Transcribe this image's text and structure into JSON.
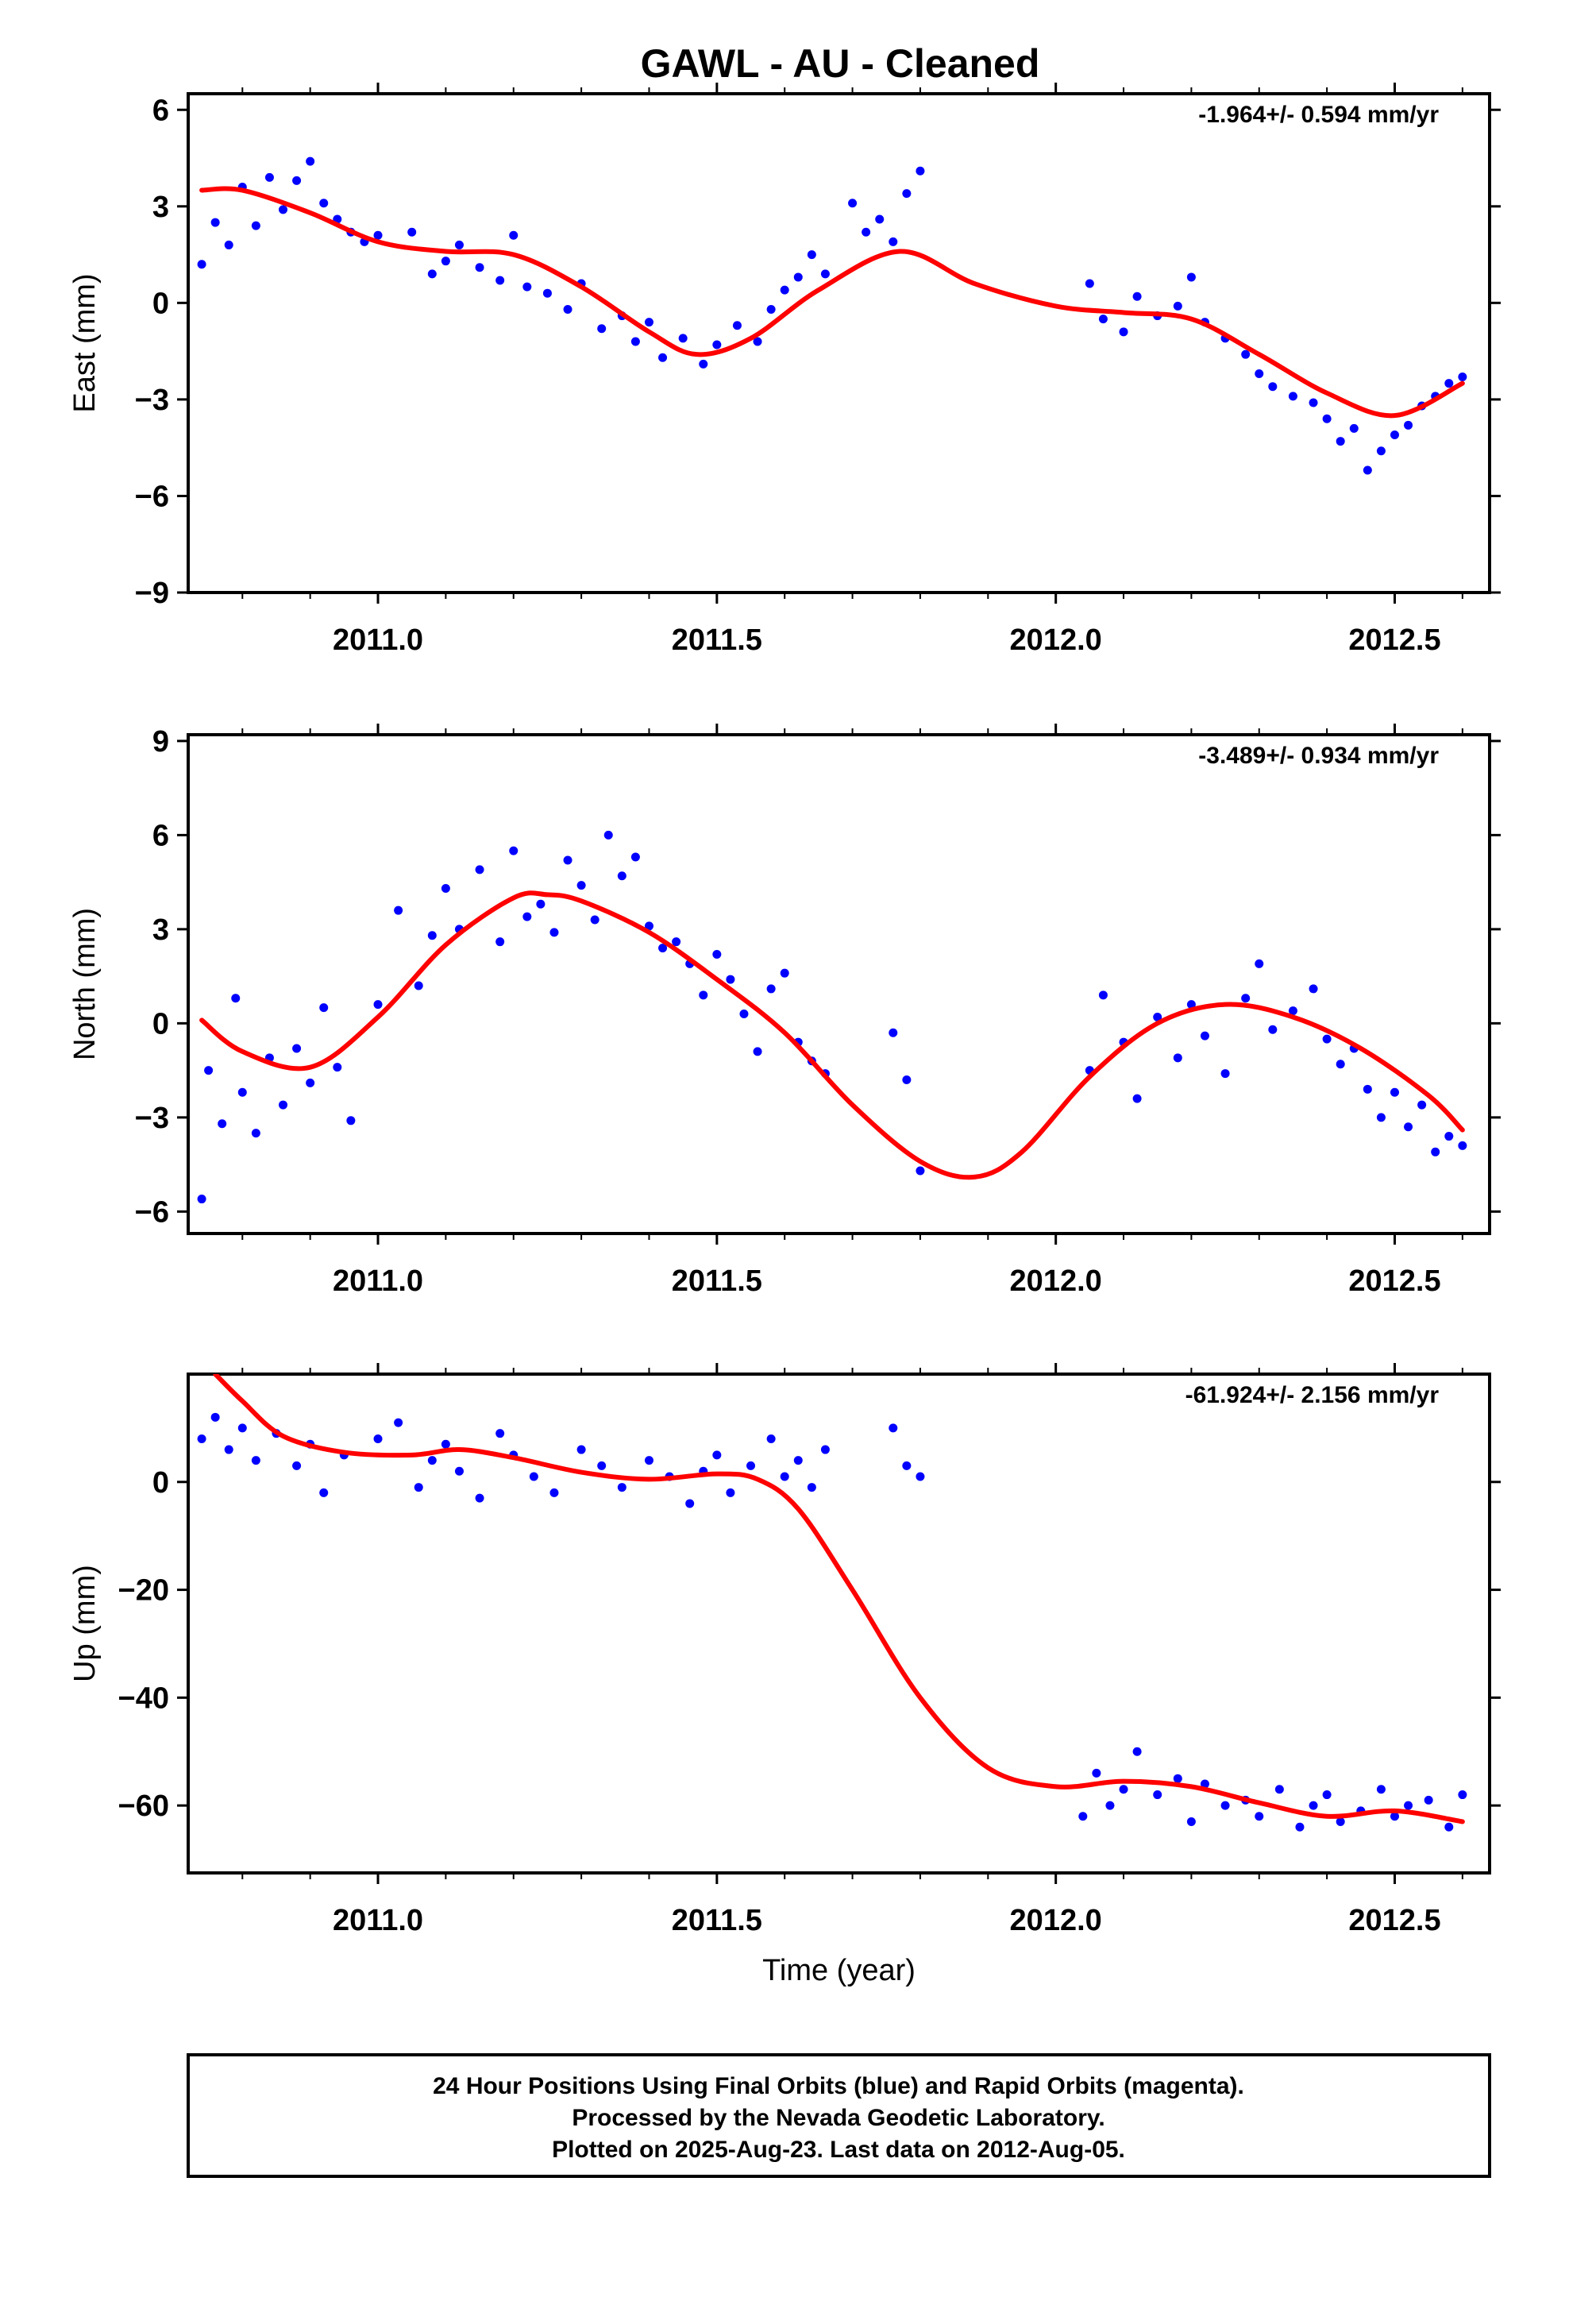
{
  "title": "GAWL  - AU - Cleaned",
  "colors": {
    "final_orbits": "#0000ff",
    "rapid_orbits": "#ff00ff",
    "model": "#ff0000",
    "frame": "#000000"
  },
  "chart_data": [
    {
      "type": "scatter",
      "ylabel": "East (mm)",
      "rate_label": "-1.964+/- 0.594 mm/yr",
      "xlim": [
        2010.72,
        2012.64
      ],
      "ylim": [
        -9,
        6.5
      ],
      "yticks": [
        6,
        3,
        0,
        -3,
        -6,
        -9
      ],
      "ytick_labels": [
        "6",
        "3",
        "0",
        "−3",
        "−6",
        "−9"
      ],
      "xticks": [
        2011.0,
        2011.5,
        2012.0,
        2012.5
      ],
      "xtick_labels": [
        "2011.0",
        "2011.5",
        "2012.0",
        "2012.5"
      ],
      "fit": {
        "name": "model",
        "x": [
          2010.74,
          2010.8,
          2010.9,
          2011.0,
          2011.1,
          2011.2,
          2011.3,
          2011.4,
          2011.47,
          2011.55,
          2011.65,
          2011.77,
          2011.88,
          2012.0,
          2012.1,
          2012.2,
          2012.3,
          2012.4,
          2012.5,
          2012.6
        ],
        "y": [
          3.5,
          3.5,
          2.8,
          1.9,
          1.6,
          1.5,
          0.5,
          -0.9,
          -1.6,
          -1.1,
          0.4,
          1.6,
          0.6,
          -0.1,
          -0.3,
          -0.5,
          -1.6,
          -2.8,
          -3.5,
          -2.5
        ]
      },
      "series": [
        {
          "x": [
            2010.74,
            2010.76,
            2010.78,
            2010.8,
            2010.82,
            2010.84,
            2010.86,
            2010.88,
            2010.9,
            2010.92,
            2010.94,
            2010.96,
            2010.98,
            2011.0,
            2011.05,
            2011.08,
            2011.1,
            2011.12,
            2011.15,
            2011.18,
            2011.2,
            2011.22,
            2011.25,
            2011.28,
            2011.3,
            2011.33,
            2011.36,
            2011.38,
            2011.4,
            2011.42,
            2011.45,
            2011.48,
            2011.5,
            2011.53,
            2011.56,
            2011.58,
            2011.6,
            2011.62,
            2011.64,
            2011.66,
            2011.7,
            2011.72,
            2011.74,
            2011.76,
            2011.78,
            2011.8,
            2012.05,
            2012.07,
            2012.1,
            2012.12,
            2012.15,
            2012.18,
            2012.2,
            2012.22,
            2012.25,
            2012.28,
            2012.3,
            2012.32,
            2012.35,
            2012.38,
            2012.4,
            2012.42,
            2012.44,
            2012.46,
            2012.48,
            2012.5,
            2012.52,
            2012.54,
            2012.56,
            2012.58,
            2012.6
          ],
          "y": [
            1.2,
            2.5,
            1.8,
            3.6,
            2.4,
            3.9,
            2.9,
            3.8,
            4.4,
            3.1,
            2.6,
            2.2,
            1.9,
            2.1,
            2.2,
            0.9,
            1.3,
            1.8,
            1.1,
            0.7,
            2.1,
            0.5,
            0.3,
            -0.2,
            0.6,
            -0.8,
            -0.4,
            -1.2,
            -0.6,
            -1.7,
            -1.1,
            -1.9,
            -1.3,
            -0.7,
            -1.2,
            -0.2,
            0.4,
            0.8,
            1.5,
            0.9,
            3.1,
            2.2,
            2.6,
            1.9,
            3.4,
            4.1,
            0.6,
            -0.5,
            -0.9,
            0.2,
            -0.4,
            -0.1,
            0.8,
            -0.6,
            -1.1,
            -1.6,
            -2.2,
            -2.6,
            -2.9,
            -3.1,
            -3.6,
            -4.3,
            -3.9,
            -5.2,
            -4.6,
            -4.1,
            -3.8,
            -3.2,
            -2.9,
            -2.5,
            -2.3
          ]
        }
      ]
    },
    {
      "type": "scatter",
      "ylabel": "North (mm)",
      "rate_label": "-3.489+/- 0.934 mm/yr",
      "xlim": [
        2010.72,
        2012.64
      ],
      "ylim": [
        -6.7,
        9.2
      ],
      "yticks": [
        9,
        6,
        3,
        0,
        -3,
        -6
      ],
      "ytick_labels": [
        "9",
        "6",
        "3",
        "0",
        "−3",
        "−6"
      ],
      "xticks": [
        2011.0,
        2011.5,
        2012.0,
        2012.5
      ],
      "xtick_labels": [
        "2011.0",
        "2011.5",
        "2012.0",
        "2012.5"
      ],
      "fit": {
        "name": "model",
        "x": [
          2010.74,
          2010.8,
          2010.9,
          2011.0,
          2011.1,
          2011.2,
          2011.25,
          2011.3,
          2011.4,
          2011.5,
          2011.6,
          2011.7,
          2011.8,
          2011.88,
          2011.95,
          2012.05,
          2012.15,
          2012.25,
          2012.35,
          2012.45,
          2012.55,
          2012.6
        ],
        "y": [
          0.1,
          -0.9,
          -1.4,
          0.2,
          2.5,
          4.0,
          4.1,
          3.9,
          2.9,
          1.4,
          -0.3,
          -2.6,
          -4.4,
          -4.9,
          -4.1,
          -1.7,
          0.0,
          0.6,
          0.2,
          -0.8,
          -2.3,
          -3.4
        ]
      },
      "series": [
        {
          "x": [
            2010.74,
            2010.75,
            2010.77,
            2010.79,
            2010.8,
            2010.82,
            2010.84,
            2010.86,
            2010.88,
            2010.9,
            2010.92,
            2010.94,
            2010.96,
            2011.0,
            2011.03,
            2011.06,
            2011.08,
            2011.1,
            2011.12,
            2011.15,
            2011.18,
            2011.2,
            2011.22,
            2011.24,
            2011.26,
            2011.28,
            2011.3,
            2011.32,
            2011.34,
            2011.36,
            2011.38,
            2011.4,
            2011.42,
            2011.44,
            2011.46,
            2011.48,
            2011.5,
            2011.52,
            2011.54,
            2011.56,
            2011.58,
            2011.6,
            2011.62,
            2011.64,
            2011.66,
            2011.76,
            2011.78,
            2011.8,
            2012.05,
            2012.07,
            2012.1,
            2012.12,
            2012.15,
            2012.18,
            2012.2,
            2012.22,
            2012.25,
            2012.28,
            2012.3,
            2012.32,
            2012.35,
            2012.38,
            2012.4,
            2012.42,
            2012.44,
            2012.46,
            2012.48,
            2012.5,
            2012.52,
            2012.54,
            2012.56,
            2012.58,
            2012.6
          ],
          "y": [
            -5.6,
            -1.5,
            -3.2,
            0.8,
            -2.2,
            -3.5,
            -1.1,
            -2.6,
            -0.8,
            -1.9,
            0.5,
            -1.4,
            -3.1,
            0.6,
            3.6,
            1.2,
            2.8,
            4.3,
            3.0,
            4.9,
            2.6,
            5.5,
            3.4,
            3.8,
            2.9,
            5.2,
            4.4,
            3.3,
            6.0,
            4.7,
            5.3,
            3.1,
            2.4,
            2.6,
            1.9,
            0.9,
            2.2,
            1.4,
            0.3,
            -0.9,
            1.1,
            1.6,
            -0.6,
            -1.2,
            -1.6,
            -0.3,
            -1.8,
            -4.7,
            -1.5,
            0.9,
            -0.6,
            -2.4,
            0.2,
            -1.1,
            0.6,
            -0.4,
            -1.6,
            0.8,
            1.9,
            -0.2,
            0.4,
            1.1,
            -0.5,
            -1.3,
            -0.8,
            -2.1,
            -3.0,
            -2.2,
            -3.3,
            -2.6,
            -4.1,
            -3.6,
            -3.9
          ]
        }
      ]
    },
    {
      "type": "scatter",
      "ylabel": "Up (mm)",
      "xlabel": "Time (year)",
      "rate_label": "-61.924+/- 2.156 mm/yr",
      "xlim": [
        2010.72,
        2012.64
      ],
      "ylim": [
        -72.5,
        20
      ],
      "yticks": [
        0,
        -20,
        -40,
        -60
      ],
      "ytick_labels": [
        "0",
        "−20",
        "−40",
        "−60"
      ],
      "xticks": [
        2011.0,
        2011.5,
        2012.0,
        2012.5
      ],
      "xtick_labels": [
        "2011.0",
        "2011.5",
        "2012.0",
        "2012.5"
      ],
      "fit": {
        "name": "model",
        "x": [
          2010.76,
          2010.8,
          2010.86,
          2010.95,
          2011.05,
          2011.12,
          2011.2,
          2011.3,
          2011.4,
          2011.5,
          2011.56,
          2011.62,
          2011.7,
          2011.8,
          2011.9,
          2012.0,
          2012.1,
          2012.2,
          2012.3,
          2012.4,
          2012.5,
          2012.6
        ],
        "y": [
          20,
          15,
          8.5,
          5.5,
          5,
          6,
          4.5,
          1.8,
          0.5,
          1.5,
          0.5,
          -5,
          -20,
          -40,
          -53,
          -56.5,
          -55.5,
          -56.5,
          -59.5,
          -62,
          -61,
          -63
        ]
      },
      "series": [
        {
          "x": [
            2010.74,
            2010.76,
            2010.78,
            2010.8,
            2010.82,
            2010.85,
            2010.88,
            2010.9,
            2010.92,
            2010.95,
            2011.0,
            2011.03,
            2011.06,
            2011.08,
            2011.1,
            2011.12,
            2011.15,
            2011.18,
            2011.2,
            2011.23,
            2011.26,
            2011.3,
            2011.33,
            2011.36,
            2011.4,
            2011.43,
            2011.46,
            2011.48,
            2011.5,
            2011.52,
            2011.55,
            2011.58,
            2011.6,
            2011.62,
            2011.64,
            2011.66,
            2011.76,
            2011.78,
            2011.8,
            2012.04,
            2012.06,
            2012.08,
            2012.1,
            2012.12,
            2012.15,
            2012.18,
            2012.2,
            2012.22,
            2012.25,
            2012.28,
            2012.3,
            2012.33,
            2012.36,
            2012.38,
            2012.4,
            2012.42,
            2012.45,
            2012.48,
            2012.5,
            2012.52,
            2012.55,
            2012.58,
            2012.6
          ],
          "y": [
            8,
            12,
            6,
            10,
            4,
            9,
            3,
            7,
            -2,
            5,
            8,
            11,
            -1,
            4,
            7,
            2,
            -3,
            9,
            5,
            1,
            -2,
            6,
            3,
            -1,
            4,
            1,
            -4,
            2,
            5,
            -2,
            3,
            8,
            1,
            4,
            -1,
            6,
            10,
            3,
            1,
            -62,
            -54,
            -60,
            -57,
            -50,
            -58,
            -55,
            -63,
            -56,
            -60,
            -59,
            -62,
            -57,
            -64,
            -60,
            -58,
            -63,
            -61,
            -57,
            -62,
            -60,
            -59,
            -64,
            -58
          ]
        }
      ]
    }
  ],
  "footer": {
    "line1": "24 Hour Positions Using Final Orbits (blue) and Rapid Orbits (magenta).",
    "line2": "Processed by the Nevada Geodetic Laboratory.",
    "line3": "Plotted on 2025-Aug-23. Last data on 2012-Aug-05."
  }
}
